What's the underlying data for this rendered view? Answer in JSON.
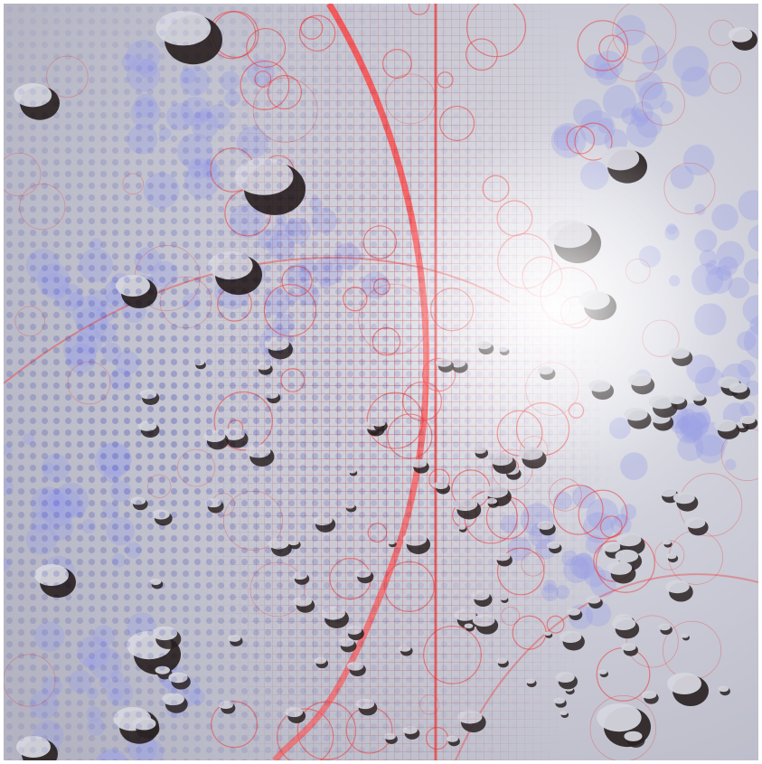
{
  "scene": {
    "kind": "fractal-sphere-render",
    "palette": {
      "base": "#c7c7d1",
      "lavender": "#9aa0e6",
      "lattice_red": "#ee3b3b",
      "hole_dark": "#2a2222",
      "highlight": "#ffffff"
    }
  }
}
